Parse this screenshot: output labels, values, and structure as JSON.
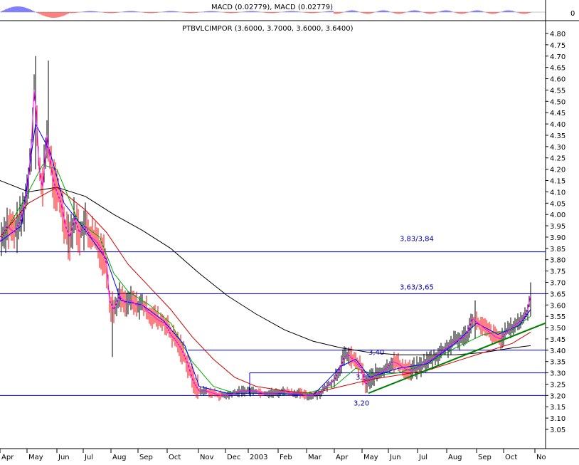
{
  "macd_panel": {
    "label": "MACD (0.02779), MACD (0.02779)",
    "zero_label": "0"
  },
  "colors": {
    "background": "#ffffff",
    "level_line": "#0000cc",
    "annotation_text": "#0000aa",
    "trendline": "#008000",
    "bar_up": "#000000",
    "bar_down": "#ff0000",
    "ma_short": "#ff00ff",
    "ma_mid": "#0000ff",
    "ma_green": "#00aa00",
    "ma_red": "#cc0000",
    "ma_long": "#000000"
  },
  "chart_data": {
    "type": "line",
    "title": "PTBVLCIMPOR (3.6000, 3.7000, 3.6000, 3.6400)",
    "ylim": [
      2.94,
      4.85
    ],
    "y_ticks": [
      "4.80",
      "4.75",
      "4.70",
      "4.65",
      "4.60",
      "4.55",
      "4.50",
      "4.45",
      "4.40",
      "4.35",
      "4.30",
      "4.25",
      "4.20",
      "4.15",
      "4.10",
      "4.05",
      "4.00",
      "3.95",
      "3.90",
      "3.85",
      "3.80",
      "3.75",
      "3.70",
      "3.65",
      "3.60",
      "3.55",
      "3.50",
      "3.45",
      "3.40",
      "3.35",
      "3.30",
      "3.25",
      "3.20",
      "3.15",
      "3.10",
      "3.05"
    ],
    "x_ticks": [
      "Apr",
      "May",
      "Jun",
      "Jul",
      "Aug",
      "Sep",
      "Oct",
      "Nov",
      "Dec",
      "2003",
      "Feb",
      "Mar",
      "Apr",
      "May",
      "Jun",
      "Jul",
      "Aug",
      "Sep",
      "Oct",
      "No"
    ],
    "price_series": {
      "points": [
        [
          0,
          3.88
        ],
        [
          10,
          3.95
        ],
        [
          20,
          3.92
        ],
        [
          30,
          3.98
        ],
        [
          38,
          4.1
        ],
        [
          44,
          4.3
        ],
        [
          48,
          4.55
        ],
        [
          51,
          4.45
        ],
        [
          55,
          4.2
        ],
        [
          60,
          4.12
        ],
        [
          66,
          4.35
        ],
        [
          70,
          4.25
        ],
        [
          75,
          4.15
        ],
        [
          80,
          4.1
        ],
        [
          86,
          4.05
        ],
        [
          92,
          3.95
        ],
        [
          98,
          3.9
        ],
        [
          105,
          3.98
        ],
        [
          112,
          3.92
        ],
        [
          120,
          3.95
        ],
        [
          128,
          3.9
        ],
        [
          136,
          3.88
        ],
        [
          144,
          3.84
        ],
        [
          150,
          3.78
        ],
        [
          154,
          3.62
        ],
        [
          160,
          3.58
        ],
        [
          168,
          3.64
        ],
        [
          176,
          3.61
        ],
        [
          184,
          3.62
        ],
        [
          192,
          3.6
        ],
        [
          200,
          3.6
        ],
        [
          208,
          3.57
        ],
        [
          216,
          3.55
        ],
        [
          224,
          3.53
        ],
        [
          232,
          3.52
        ],
        [
          240,
          3.47
        ],
        [
          248,
          3.44
        ],
        [
          256,
          3.4
        ],
        [
          264,
          3.34
        ],
        [
          272,
          3.26
        ],
        [
          280,
          3.22
        ],
        [
          290,
          3.22
        ],
        [
          300,
          3.21
        ],
        [
          310,
          3.2
        ],
        [
          320,
          3.2
        ],
        [
          330,
          3.21
        ],
        [
          340,
          3.22
        ],
        [
          350,
          3.22
        ],
        [
          360,
          3.22
        ],
        [
          370,
          3.21
        ],
        [
          380,
          3.21
        ],
        [
          390,
          3.21
        ],
        [
          400,
          3.22
        ],
        [
          410,
          3.21
        ],
        [
          420,
          3.21
        ],
        [
          430,
          3.2
        ],
        [
          440,
          3.2
        ],
        [
          450,
          3.21
        ],
        [
          460,
          3.24
        ],
        [
          470,
          3.27
        ],
        [
          478,
          3.32
        ],
        [
          484,
          3.37
        ],
        [
          490,
          3.38
        ],
        [
          496,
          3.36
        ],
        [
          502,
          3.34
        ],
        [
          508,
          3.32
        ],
        [
          514,
          3.25
        ],
        [
          520,
          3.27
        ],
        [
          528,
          3.29
        ],
        [
          536,
          3.3
        ],
        [
          544,
          3.32
        ],
        [
          552,
          3.35
        ],
        [
          560,
          3.34
        ],
        [
          568,
          3.32
        ],
        [
          576,
          3.31
        ],
        [
          584,
          3.32
        ],
        [
          592,
          3.33
        ],
        [
          600,
          3.35
        ],
        [
          608,
          3.36
        ],
        [
          616,
          3.38
        ],
        [
          624,
          3.4
        ],
        [
          632,
          3.42
        ],
        [
          640,
          3.44
        ],
        [
          648,
          3.45
        ],
        [
          656,
          3.47
        ],
        [
          664,
          3.54
        ],
        [
          672,
          3.52
        ],
        [
          680,
          3.5
        ],
        [
          688,
          3.48
        ],
        [
          696,
          3.46
        ],
        [
          704,
          3.45
        ],
        [
          712,
          3.48
        ],
        [
          720,
          3.5
        ],
        [
          728,
          3.52
        ],
        [
          736,
          3.54
        ],
        [
          742,
          3.58
        ],
        [
          746,
          3.64
        ]
      ]
    },
    "series": [
      {
        "style": "ma_long",
        "points": [
          [
            0,
            4.15
          ],
          [
            40,
            4.1
          ],
          [
            80,
            4.12
          ],
          [
            120,
            4.08
          ],
          [
            160,
            4.0
          ],
          [
            200,
            3.93
          ],
          [
            240,
            3.85
          ],
          [
            280,
            3.74
          ],
          [
            320,
            3.64
          ],
          [
            360,
            3.56
          ],
          [
            400,
            3.49
          ],
          [
            440,
            3.44
          ],
          [
            480,
            3.41
          ],
          [
            520,
            3.39
          ],
          [
            560,
            3.38
          ],
          [
            600,
            3.38
          ],
          [
            640,
            3.38
          ],
          [
            680,
            3.39
          ],
          [
            720,
            3.41
          ],
          [
            746,
            3.42
          ]
        ]
      },
      {
        "style": "ma_red",
        "points": [
          [
            0,
            3.9
          ],
          [
            40,
            4.05
          ],
          [
            80,
            4.12
          ],
          [
            120,
            4.02
          ],
          [
            150,
            3.92
          ],
          [
            180,
            3.78
          ],
          [
            210,
            3.68
          ],
          [
            240,
            3.58
          ],
          [
            270,
            3.46
          ],
          [
            300,
            3.36
          ],
          [
            330,
            3.28
          ],
          [
            360,
            3.24
          ],
          [
            400,
            3.22
          ],
          [
            440,
            3.21
          ],
          [
            480,
            3.24
          ],
          [
            520,
            3.27
          ],
          [
            560,
            3.29
          ],
          [
            600,
            3.31
          ],
          [
            640,
            3.35
          ],
          [
            680,
            3.39
          ],
          [
            720,
            3.43
          ],
          [
            746,
            3.48
          ]
        ]
      },
      {
        "style": "ma_green",
        "points": [
          [
            0,
            3.88
          ],
          [
            40,
            4.1
          ],
          [
            60,
            4.22
          ],
          [
            80,
            4.2
          ],
          [
            110,
            3.97
          ],
          [
            140,
            3.9
          ],
          [
            160,
            3.74
          ],
          [
            180,
            3.66
          ],
          [
            210,
            3.6
          ],
          [
            240,
            3.52
          ],
          [
            270,
            3.35
          ],
          [
            300,
            3.24
          ],
          [
            330,
            3.21
          ],
          [
            380,
            3.21
          ],
          [
            430,
            3.21
          ],
          [
            470,
            3.24
          ],
          [
            500,
            3.32
          ],
          [
            530,
            3.29
          ],
          [
            560,
            3.3
          ],
          [
            600,
            3.34
          ],
          [
            640,
            3.41
          ],
          [
            680,
            3.47
          ],
          [
            720,
            3.49
          ],
          [
            746,
            3.55
          ]
        ]
      },
      {
        "style": "ma_mid",
        "points": [
          [
            0,
            3.88
          ],
          [
            30,
            3.95
          ],
          [
            50,
            4.4
          ],
          [
            70,
            4.28
          ],
          [
            90,
            4.05
          ],
          [
            120,
            3.93
          ],
          [
            150,
            3.8
          ],
          [
            170,
            3.62
          ],
          [
            200,
            3.6
          ],
          [
            230,
            3.53
          ],
          [
            260,
            3.42
          ],
          [
            280,
            3.24
          ],
          [
            320,
            3.21
          ],
          [
            380,
            3.21
          ],
          [
            440,
            3.2
          ],
          [
            480,
            3.33
          ],
          [
            500,
            3.36
          ],
          [
            520,
            3.28
          ],
          [
            560,
            3.32
          ],
          [
            600,
            3.34
          ],
          [
            640,
            3.43
          ],
          [
            670,
            3.52
          ],
          [
            700,
            3.47
          ],
          [
            730,
            3.51
          ],
          [
            746,
            3.58
          ]
        ]
      }
    ],
    "levels": [
      {
        "value": 3.835,
        "label": "3,83/3,84"
      },
      {
        "value": 3.65,
        "label": "3,63/3,65"
      },
      {
        "value": 3.4,
        "label": "3,40"
      },
      {
        "value": 3.3,
        "label": ""
      },
      {
        "value": 3.2,
        "label": "3,20"
      }
    ],
    "extra_annotation": "3,3",
    "trendline": {
      "from": [
        518,
        3.21
      ],
      "to": [
        767,
        3.52
      ]
    }
  }
}
